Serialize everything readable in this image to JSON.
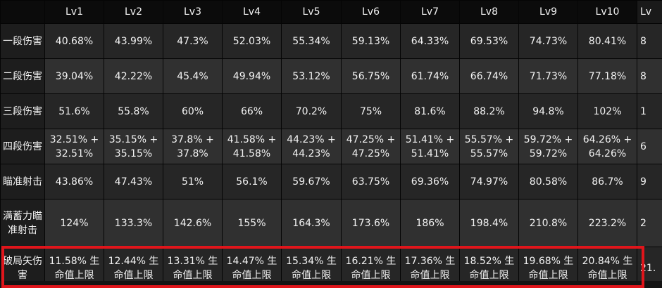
{
  "columns": [
    "",
    "Lv1",
    "Lv2",
    "Lv3",
    "Lv4",
    "Lv5",
    "Lv6",
    "Lv7",
    "Lv8",
    "Lv9",
    "Lv10",
    "Lv"
  ],
  "rows": [
    {
      "label": "一段伤害",
      "values": [
        "40.68%",
        "43.99%",
        "47.3%",
        "52.03%",
        "55.34%",
        "59.13%",
        "64.33%",
        "69.53%",
        "74.73%",
        "80.41%",
        "8"
      ]
    },
    {
      "label": "二段伤害",
      "values": [
        "39.04%",
        "42.22%",
        "45.4%",
        "49.94%",
        "53.12%",
        "56.75%",
        "61.74%",
        "66.74%",
        "71.73%",
        "77.18%",
        "8"
      ]
    },
    {
      "label": "三段伤害",
      "values": [
        "51.6%",
        "55.8%",
        "60%",
        "66%",
        "70.2%",
        "75%",
        "81.6%",
        "88.2%",
        "94.8%",
        "102%",
        "1"
      ]
    },
    {
      "label": "四段伤害",
      "values": [
        "32.51% + 32.51%",
        "35.15% + 35.15%",
        "37.8% + 37.8%",
        "41.58% + 41.58%",
        "44.23% + 44.23%",
        "47.25% + 47.25%",
        "51.41% + 51.41%",
        "55.57% + 55.57%",
        "59.72% + 59.72%",
        "64.26% + 64.26%",
        "6"
      ]
    },
    {
      "label": "瞄准射击",
      "values": [
        "43.86%",
        "47.43%",
        "51%",
        "56.1%",
        "59.67%",
        "63.75%",
        "69.36%",
        "74.97%",
        "80.58%",
        "86.7%",
        "9"
      ]
    },
    {
      "label": "满蓄力瞄准射击",
      "values": [
        "124%",
        "133.3%",
        "142.6%",
        "155%",
        "164.3%",
        "173.6%",
        "186%",
        "198.4%",
        "210.8%",
        "223.2%",
        "2"
      ]
    },
    {
      "label": "破局矢伤害",
      "values": [
        "11.58% 生命值上限",
        "12.44% 生命值上限",
        "13.31% 生命值上限",
        "14.47% 生命值上限",
        "15.34% 生命值上限",
        "16.21% 生命值上限",
        "17.36% 生命值上限",
        "18.52% 生命值上限",
        "19.68% 生命值上限",
        "20.84% 生命值上限",
        "21."
      ]
    }
  ],
  "colors": {
    "header_bg": "#0b0b0b",
    "rowhead_bg": "#1d1d1d",
    "cell_bg_a": "#262626",
    "cell_bg_b": "#303030",
    "highlight": "#e0151b",
    "text": "#f2f2f2"
  }
}
